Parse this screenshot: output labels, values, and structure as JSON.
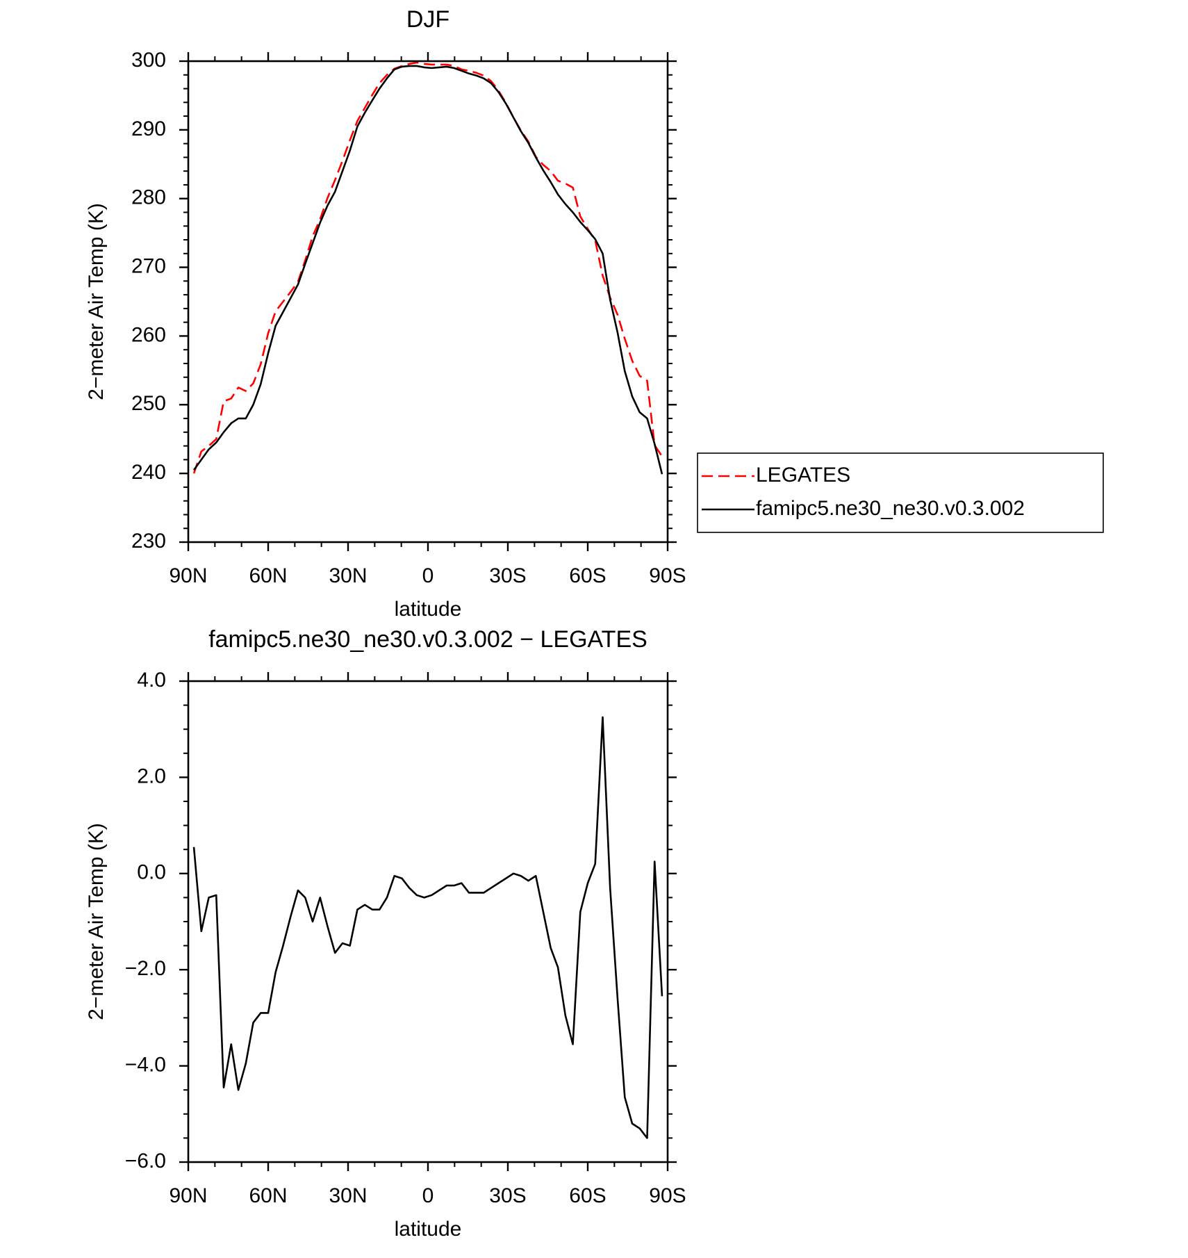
{
  "chart_data": [
    {
      "type": "line",
      "title": "DJF",
      "xlabel": "latitude",
      "ylabel": "2−meter Air Temp (K)",
      "x": [
        87.9,
        85.1,
        82.3,
        79.5,
        76.7,
        73.9,
        71.2,
        68.4,
        65.6,
        62.8,
        60.0,
        57.2,
        54.4,
        51.6,
        48.8,
        46.1,
        43.3,
        40.5,
        37.7,
        34.9,
        32.1,
        29.3,
        26.5,
        23.7,
        20.9,
        18.2,
        15.4,
        12.6,
        9.8,
        7.0,
        4.2,
        1.4,
        -1.4,
        -4.2,
        -7.0,
        -9.8,
        -12.6,
        -15.4,
        -18.2,
        -20.9,
        -23.7,
        -26.5,
        -29.3,
        -32.1,
        -34.9,
        -37.7,
        -40.5,
        -43.3,
        -46.1,
        -48.8,
        -51.6,
        -54.4,
        -57.2,
        -60.0,
        -62.8,
        -65.6,
        -68.4,
        -71.2,
        -73.9,
        -76.7,
        -79.5,
        -82.3,
        -85.1,
        -87.9
      ],
      "series": [
        {
          "name": "LEGATES",
          "color": "#ff0000",
          "linestyle": "dashed",
          "values": [
            240.0,
            243.2,
            244.0,
            245.0,
            250.5,
            250.9,
            252.5,
            252.0,
            253.1,
            255.9,
            260.4,
            263.6,
            265.0,
            266.4,
            267.9,
            271.0,
            274.5,
            277.0,
            280.1,
            282.7,
            285.5,
            288.5,
            291.3,
            293.2,
            295.1,
            296.8,
            298.0,
            298.9,
            299.3,
            299.6,
            299.8,
            299.6,
            299.5,
            299.5,
            299.5,
            299.3,
            298.8,
            298.6,
            298.3,
            297.9,
            297.1,
            295.7,
            293.9,
            291.8,
            289.9,
            288.3,
            286.1,
            284.9,
            284.0,
            282.6,
            282.2,
            281.6,
            277.4,
            275.6,
            273.9,
            268.8,
            265.6,
            263.1,
            259.6,
            256.4,
            254.2,
            253.5,
            244.1,
            242.5
          ]
        },
        {
          "name": "famipc5.ne30_ne30.v0.3.002",
          "color": "#000000",
          "linestyle": "solid",
          "values": [
            240.5,
            242.0,
            243.5,
            244.5,
            246.0,
            247.3,
            248.0,
            248.0,
            250.0,
            253.0,
            257.5,
            261.5,
            263.5,
            265.5,
            267.5,
            270.5,
            273.5,
            276.5,
            279.0,
            281.0,
            284.0,
            287.0,
            290.5,
            292.5,
            294.3,
            296.0,
            297.5,
            298.8,
            299.2,
            299.3,
            299.3,
            299.1,
            299.0,
            299.1,
            299.2,
            299.0,
            298.6,
            298.2,
            297.9,
            297.5,
            296.8,
            295.5,
            293.8,
            291.8,
            289.8,
            288.1,
            286.0,
            284.1,
            282.4,
            280.6,
            279.2,
            278.0,
            276.6,
            275.4,
            274.1,
            272.0,
            265.3,
            260.5,
            254.9,
            251.2,
            248.9,
            248.0,
            244.3,
            239.9
          ]
        }
      ],
      "xlim": [
        90,
        -90
      ],
      "xticks": [
        {
          "value": 90,
          "label": "90N"
        },
        {
          "value": 60,
          "label": "60N"
        },
        {
          "value": 30,
          "label": "30N"
        },
        0,
        {
          "value": -30,
          "label": "30S"
        },
        {
          "value": -60,
          "label": "60S"
        },
        {
          "value": -90,
          "label": "90S"
        }
      ],
      "xminorticks": [
        80,
        70,
        50,
        40,
        20,
        10,
        -10,
        -20,
        -40,
        -50,
        -70,
        -80
      ],
      "ylim": [
        230,
        300
      ],
      "yticks": [
        230,
        240,
        250,
        260,
        270,
        280,
        290,
        300
      ],
      "yminorticks": [
        232,
        234,
        236,
        238,
        242,
        244,
        246,
        248,
        252,
        254,
        256,
        258,
        262,
        264,
        266,
        268,
        272,
        274,
        276,
        278,
        282,
        284,
        286,
        288,
        292,
        294,
        296,
        298
      ],
      "legend": "right"
    },
    {
      "type": "line",
      "title": "famipc5.ne30_ne30.v0.3.002 − LEGATES",
      "xlabel": "latitude",
      "ylabel": "2−meter Air Temp (K)",
      "x": [
        87.9,
        85.1,
        82.3,
        79.5,
        76.7,
        73.9,
        71.2,
        68.4,
        65.6,
        62.8,
        60.0,
        57.2,
        54.4,
        51.6,
        48.8,
        46.1,
        43.3,
        40.5,
        37.7,
        34.9,
        32.1,
        29.3,
        26.5,
        23.7,
        20.9,
        18.2,
        15.4,
        12.6,
        9.8,
        7.0,
        4.2,
        1.4,
        -1.4,
        -4.2,
        -7.0,
        -9.8,
        -12.6,
        -15.4,
        -18.2,
        -20.9,
        -23.7,
        -26.5,
        -29.3,
        -32.1,
        -34.9,
        -37.7,
        -40.5,
        -43.3,
        -46.1,
        -48.8,
        -51.6,
        -54.4,
        -57.2,
        -60.0,
        -62.8,
        -65.6,
        -68.4,
        -71.2,
        -73.9,
        -76.7,
        -79.5,
        -82.3,
        -85.1,
        -87.9
      ],
      "values": [
        0.55,
        -1.2,
        -0.5,
        -0.45,
        -4.45,
        -3.55,
        -4.5,
        -3.95,
        -3.1,
        -2.9,
        -2.9,
        -2.05,
        -1.5,
        -0.9,
        -0.35,
        -0.5,
        -1.0,
        -0.5,
        -1.1,
        -1.65,
        -1.45,
        -1.5,
        -0.75,
        -0.65,
        -0.75,
        -0.75,
        -0.5,
        -0.05,
        -0.1,
        -0.3,
        -0.45,
        -0.5,
        -0.45,
        -0.35,
        -0.25,
        -0.25,
        -0.2,
        -0.4,
        -0.4,
        -0.4,
        -0.3,
        -0.2,
        -0.1,
        0.0,
        -0.05,
        -0.15,
        -0.05,
        -0.8,
        -1.55,
        -1.95,
        -2.95,
        -3.55,
        -0.8,
        -0.2,
        0.2,
        3.25,
        -0.3,
        -2.6,
        -4.65,
        -5.2,
        -5.3,
        -5.5,
        0.25,
        -2.55
      ],
      "color": "#000000",
      "xlim": [
        90,
        -90
      ],
      "xticks": [
        {
          "value": 90,
          "label": "90N"
        },
        {
          "value": 60,
          "label": "60N"
        },
        {
          "value": 30,
          "label": "30N"
        },
        0,
        {
          "value": -30,
          "label": "30S"
        },
        {
          "value": -60,
          "label": "60S"
        },
        {
          "value": -90,
          "label": "90S"
        }
      ],
      "xminorticks": [
        80,
        70,
        50,
        40,
        20,
        10,
        -10,
        -20,
        -40,
        -50,
        -70,
        -80
      ],
      "ylim": [
        -6,
        4
      ],
      "yticks": [
        {
          "value": -6,
          "label": "−6.0"
        },
        {
          "value": -4,
          "label": "−4.0"
        },
        {
          "value": -2,
          "label": "−2.0"
        },
        {
          "value": 0,
          "label": "0.0"
        },
        {
          "value": 2,
          "label": "2.0"
        },
        {
          "value": 4,
          "label": "4.0"
        }
      ],
      "yminorticks": [
        -5.5,
        -5,
        -4.5,
        -3.5,
        -3,
        -2.5,
        -1.5,
        -1,
        -0.5,
        0.5,
        1,
        1.5,
        2.5,
        3,
        3.5
      ]
    }
  ]
}
